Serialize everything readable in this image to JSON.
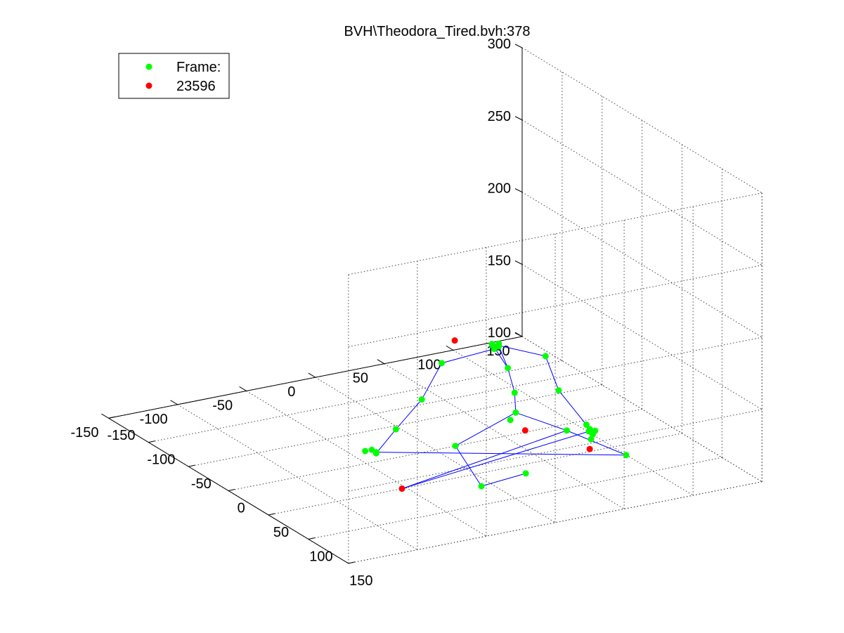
{
  "figure": {
    "title": "BVH\\Theodora_Tired.bvh:378"
  },
  "legend": {
    "placement": "top-left",
    "entries": [
      {
        "label": "Frame:",
        "color": "#00ff00"
      },
      {
        "label": "23596",
        "color": "#ff0000"
      }
    ]
  },
  "chart_data": {
    "type": "scatter",
    "title": "BVH\\Theodora_Tired.bvh:378",
    "projection": "3d",
    "grid": true,
    "xlim": [
      -150,
      150
    ],
    "ylim": [
      -150,
      150
    ],
    "zlim": [
      100,
      300
    ],
    "x_ticks": [
      -150,
      -100,
      -50,
      0,
      50,
      100,
      150
    ],
    "y_ticks": [
      -150,
      -100,
      -50,
      0,
      50,
      100,
      150
    ],
    "z_ticks": [
      100,
      150,
      200,
      250,
      300
    ],
    "x_tick_labels": [
      "-150",
      "-100",
      "-50",
      "0",
      "50",
      "100",
      "150"
    ],
    "y_tick_labels": [
      "-150",
      "-100",
      "-50",
      "0",
      "50",
      "100",
      "150"
    ],
    "z_tick_labels": [
      "100",
      "150",
      "200",
      "250",
      "300"
    ],
    "series": [
      {
        "name": "Frame:",
        "color": "#00ff00",
        "marker": "circle"
      },
      {
        "name": "23596",
        "color": "#ff0000",
        "marker": "circle"
      }
    ],
    "green_points": [
      [
        99.5,
        -16.6,
        209.9
      ],
      [
        102.2,
        -13.2,
        208.5
      ],
      [
        117.4,
        11.9,
        202.1
      ],
      [
        127.1,
        15.8,
        180.9
      ],
      [
        138.3,
        29.4,
        158.3
      ],
      [
        138.6,
        31.7,
        154.9
      ],
      [
        139.5,
        33.3,
        151.2
      ],
      [
        97.5,
        -13.8,
        205.3
      ],
      [
        88.0,
        -46.4,
        198.4
      ],
      [
        84.5,
        -58.8,
        174.4
      ],
      [
        82.8,
        -76.6,
        156.5
      ],
      [
        81.1,
        -89.9,
        141.8
      ],
      [
        102.3,
        -6.7,
        192.3
      ],
      [
        106.0,
        -3.9,
        175.9
      ],
      [
        108.7,
        -4.7,
        163.2
      ],
      [
        121.0,
        25.2,
        149.3
      ],
      [
        100.0,
        -43.4,
        144.5
      ],
      [
        118.1,
        -35.0,
        121.1
      ],
      [
        122.2,
        -5.2,
        125.7
      ],
      [
        140.4,
        57.0,
        132.8
      ],
      [
        79.3,
        -88.8,
        141.8
      ],
      [
        137.9,
        31.4,
        153.2
      ],
      [
        141.2,
        34.1,
        154.2
      ],
      [
        139.0,
        32.4,
        147.9
      ],
      [
        76.3,
        -90.3,
        142.7
      ],
      [
        70.6,
        -91.8,
        140.2
      ],
      [
        109.0,
        -8.8,
        159.0
      ],
      [
        102.2,
        -13.2,
        210.4
      ],
      [
        99.0,
        -16.0,
        208.9
      ]
    ],
    "red_points": [
      [
        88.5,
        -37.2,
        212.5
      ],
      [
        113.5,
        -0.6,
        151.7
      ],
      [
        89.2,
        -75.9,
        117.4
      ],
      [
        125.4,
        39.3,
        135.3
      ]
    ],
    "bones": [
      [
        0,
        2
      ],
      [
        2,
        3
      ],
      [
        3,
        4
      ],
      [
        0,
        7
      ],
      [
        7,
        8
      ],
      [
        8,
        9
      ],
      [
        9,
        10
      ],
      [
        10,
        11
      ],
      [
        0,
        12
      ],
      [
        12,
        13
      ],
      [
        13,
        14
      ],
      [
        14,
        15
      ],
      [
        1,
        12
      ],
      [
        14,
        16
      ],
      [
        16,
        17
      ],
      [
        17,
        18
      ],
      [
        17,
        34
      ],
      [
        15,
        19
      ],
      [
        19,
        20
      ],
      [
        15,
        31
      ],
      [
        31,
        21
      ]
    ]
  }
}
